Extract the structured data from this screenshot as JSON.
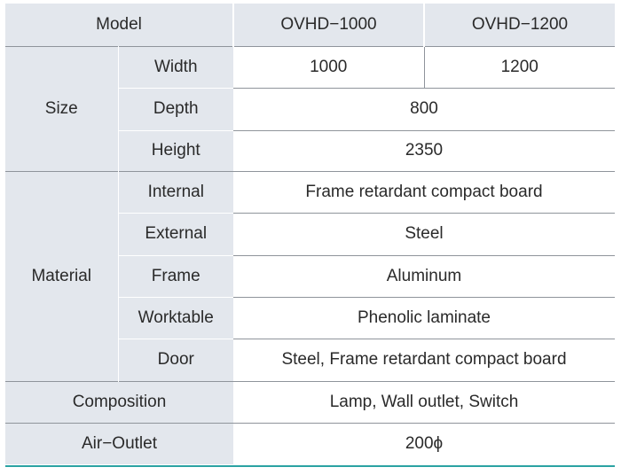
{
  "header": {
    "model_label": "Model",
    "col1": "OVHD−1000",
    "col2": "OVHD−1200"
  },
  "size": {
    "label": "Size",
    "width_label": "Width",
    "width_col1": "1000",
    "width_col2": "1200",
    "depth_label": "Depth",
    "depth_value": "800",
    "height_label": "Height",
    "height_value": "2350"
  },
  "material": {
    "label": "Material",
    "internal_label": "Internal",
    "internal_value": "Frame retardant compact board",
    "external_label": "External",
    "external_value": "Steel",
    "frame_label": "Frame",
    "frame_value": "Aluminum",
    "worktable_label": "Worktable",
    "worktable_value": "Phenolic laminate",
    "door_label": "Door",
    "door_value": "Steel, Frame retardant compact board"
  },
  "composition": {
    "label": "Composition",
    "value": "Lamp, Wall outlet, Switch"
  },
  "air_outlet": {
    "label": "Air−Outlet",
    "value": "200ϕ"
  },
  "colors": {
    "header_bg": "#e3e7ed",
    "rule_teal": "#2ba3a3",
    "row_line": "#8f949b"
  }
}
